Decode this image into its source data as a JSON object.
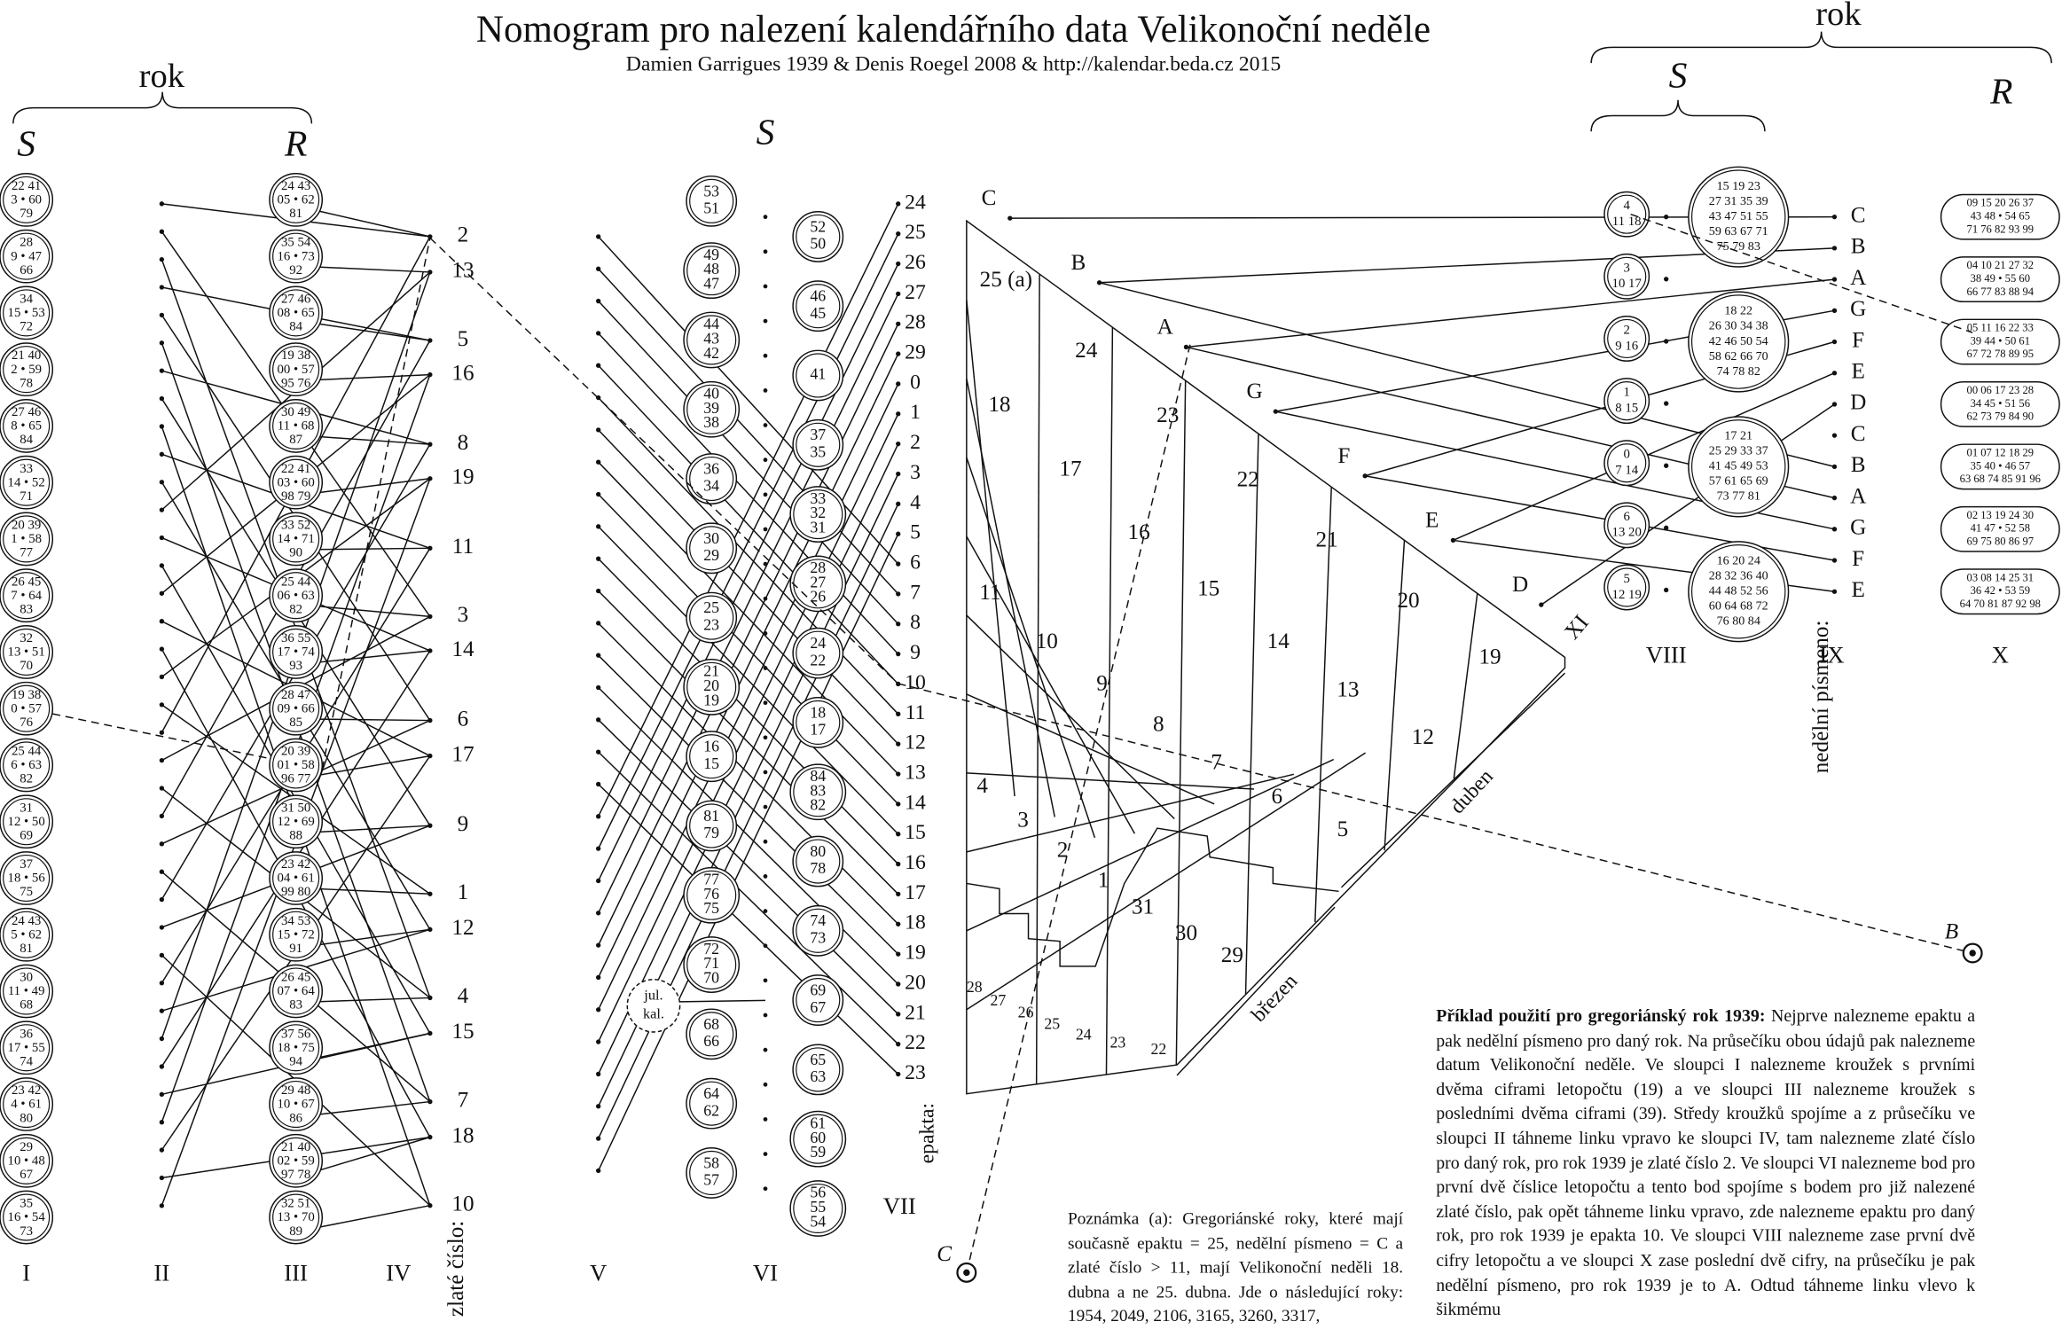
{
  "title": "Nomogram pro nalezení kalendářního data Velikonoční neděle",
  "subtitle": "Damien Garrigues 1939 & Denis Roegel 2008 & http://kalendar.beda.cz 2015",
  "labels": {
    "rok_left": "rok",
    "s_left": "S",
    "r_left": "R",
    "s_middle": "S",
    "rok_right": "rok",
    "s_right": "S",
    "r_right": "R",
    "golden": "zlaté číslo:",
    "epact": "epakta:",
    "sunday_letter": "nedělní písmeno:",
    "april": "duben",
    "march": "březen",
    "xi": "XI",
    "point_b": "B",
    "point_c": "C",
    "julian": [
      "jul.",
      "kal."
    ]
  },
  "columns": [
    "I",
    "II",
    "III",
    "IV",
    "V",
    "VI",
    "VII",
    "VIII",
    "IX",
    "X"
  ],
  "col_i": [
    [
      "22 41",
      "3 • 60",
      "79"
    ],
    [
      "28",
      "9 • 47",
      "66"
    ],
    [
      "34",
      "15 • 53",
      "72"
    ],
    [
      "21 40",
      "2 • 59",
      "78"
    ],
    [
      "27 46",
      "8 • 65",
      "84"
    ],
    [
      "33",
      "14 • 52",
      "71"
    ],
    [
      "20 39",
      "1 • 58",
      "77"
    ],
    [
      "26 45",
      "7 • 64",
      "83"
    ],
    [
      "32",
      "13 • 51",
      "70"
    ],
    [
      "19 38",
      "0 • 57",
      "76"
    ],
    [
      "25 44",
      "6 • 63",
      "82"
    ],
    [
      "31",
      "12 • 50",
      "69"
    ],
    [
      "37",
      "18 • 56",
      "75"
    ],
    [
      "24 43",
      "5 • 62",
      "81"
    ],
    [
      "30",
      "11 • 49",
      "68"
    ],
    [
      "36",
      "17 • 55",
      "74"
    ],
    [
      "23 42",
      "4 • 61",
      "80"
    ],
    [
      "29",
      "10 • 48",
      "67"
    ],
    [
      "35",
      "16 • 54",
      "73"
    ]
  ],
  "col_iii": [
    [
      "24 43",
      "05 • 62",
      "81"
    ],
    [
      "35 54",
      "16 • 73",
      "92"
    ],
    [
      "27 46",
      "08 • 65",
      "84"
    ],
    [
      "19 38",
      "00 • 57",
      "95 76"
    ],
    [
      "30 49",
      "11 • 68",
      "87"
    ],
    [
      "22 41",
      "03 • 60",
      "98 79"
    ],
    [
      "33 52",
      "14 • 71",
      "90"
    ],
    [
      "25 44",
      "06 • 63",
      "82"
    ],
    [
      "36 55",
      "17 • 74",
      "93"
    ],
    [
      "28 47",
      "09 • 66",
      "85"
    ],
    [
      "20 39",
      "01 • 58",
      "96 77"
    ],
    [
      "31 50",
      "12 • 69",
      "88"
    ],
    [
      "23 42",
      "04 • 61",
      "99 80"
    ],
    [
      "34 53",
      "15 • 72",
      "91"
    ],
    [
      "26 45",
      "07 • 64",
      "83"
    ],
    [
      "37 56",
      "18 • 75",
      "94"
    ],
    [
      "29 48",
      "10 • 67",
      "86"
    ],
    [
      "21 40",
      "02 • 59",
      "97 78"
    ],
    [
      "32 51",
      "13 • 70",
      "89"
    ]
  ],
  "col_iv": [
    2,
    13,
    5,
    16,
    8,
    19,
    11,
    3,
    14,
    6,
    17,
    9,
    1,
    12,
    4,
    15,
    7,
    18,
    10
  ],
  "col_vi_left": [
    [
      53,
      51
    ],
    [
      49,
      48,
      47
    ],
    [
      44,
      43,
      42
    ],
    [
      40,
      39,
      38
    ],
    [
      36,
      34
    ],
    [
      30,
      29
    ],
    [
      25,
      23
    ],
    [
      21,
      20,
      19
    ],
    [
      16,
      15
    ],
    [
      81,
      79
    ],
    [
      77,
      76,
      75
    ],
    [
      72,
      71,
      70
    ],
    [
      68,
      66
    ],
    [
      64,
      62
    ],
    [
      58,
      57
    ]
  ],
  "col_vi_right": [
    [
      52,
      50
    ],
    [
      46,
      45
    ],
    [
      41
    ],
    [
      37,
      35
    ],
    [
      33,
      32,
      31
    ],
    [
      28,
      27,
      26
    ],
    [
      24,
      22
    ],
    [
      18,
      17
    ],
    [
      84,
      83,
      82
    ],
    [
      80,
      78
    ],
    [
      74,
      73
    ],
    [
      69,
      67
    ],
    [
      65,
      63
    ],
    [
      61,
      60,
      59
    ],
    [
      56,
      55,
      54
    ]
  ],
  "epact": [
    24,
    25,
    26,
    27,
    28,
    29,
    0,
    1,
    2,
    3,
    4,
    5,
    6,
    7,
    8,
    9,
    10,
    11,
    12,
    13,
    14,
    15,
    16,
    17,
    18,
    19,
    20,
    21,
    22,
    23
  ],
  "letters_left": [
    "C",
    "B",
    "A",
    "G",
    "F",
    "E",
    "D"
  ],
  "grid": [
    "25 (a)",
    18,
    24,
    17,
    23,
    11,
    16,
    22,
    10,
    21,
    9,
    15,
    8,
    20,
    14,
    7,
    13,
    4,
    19,
    3,
    6,
    12,
    2,
    5,
    1,
    31,
    30,
    29,
    28,
    27,
    26,
    25,
    24,
    23,
    22
  ],
  "col_viii_small": [
    [
      "4",
      "11 18"
    ],
    [
      "3",
      "10 17"
    ],
    [
      "2",
      "9 16"
    ],
    [
      "1",
      "8 15"
    ],
    [
      "0",
      "7 14"
    ],
    [
      "6",
      "13 20"
    ],
    [
      "5",
      "12 19"
    ]
  ],
  "col_viii_big": [
    [
      "15 19 23",
      "27 31 35 39",
      "43 47 51 55",
      "59 63 67 71",
      "75 79 83"
    ],
    [
      "18 22",
      "26 30 34 38",
      "42 46 50 54",
      "58 62 66 70",
      "74 78 82"
    ],
    [
      "17 21",
      "25 29 33 37",
      "41 45 49 53",
      "57 61 65 69",
      "73 77 81"
    ],
    [
      "16 20 24",
      "28 32 36 40",
      "44 48 52 56",
      "60 64 68 72",
      "76 80 84"
    ]
  ],
  "col_ix": [
    "C",
    "B",
    "A",
    "G",
    "F",
    "E",
    "D",
    "C",
    "B",
    "A",
    "G",
    "F",
    "E"
  ],
  "col_x": [
    [
      "09 15 20 26 37",
      "43 48 • 54 65",
      "71 76 82 93 99"
    ],
    [
      "04 10 21 27 32",
      "38 49 • 55 60",
      "66 77 83 88 94"
    ],
    [
      "05 11 16 22 33",
      "39 44 • 50 61",
      "67 72 78 89 95"
    ],
    [
      "00 06 17 23 28",
      "34 45 • 51 56",
      "62 73 79 84 90"
    ],
    [
      "01 07 12 18 29",
      "35 40 • 46 57",
      "63 68 74 85 91 96"
    ],
    [
      "02 13 19 24 30",
      "41 47 • 52 58",
      "69 75 80 86 97"
    ],
    [
      "03 08 14 25 31",
      "36 42 • 53 59",
      "64 70 81 87 92 98"
    ]
  ],
  "note": "Poznámka (a): Gregoriánské roky, které mají současně epaktu = 25, nedělní písmeno = C a zlaté číslo > 11, mají Velikonoční neděli 18. dubna a ne 25. dubna. Jde o následující roky: 1954, 2049, 2106, 3165, 3260, 3317,",
  "example": {
    "lead": "Příklad použití pro gregoriánský rok 1939:",
    "text": "Nejprve nalezneme epaktu a pak nedělní písmeno pro daný rok. Na průsečíku obou údajů pak nalezneme datum Velikonoční neděle. Ve sloupci I nalezneme kroužek s prvními dvěma ciframi letopočtu (19) a ve sloupci III nalezneme kroužek s posledními dvěma ciframi (39). Středy kroužků spojíme a z průsečíku ve sloupci II táhneme linku vpravo ke sloupci IV, tam nalezneme zlaté číslo pro daný rok, pro rok 1939 je zlaté číslo 2. Ve sloupci VI nalezneme bod pro první dvě číslice letopočtu a tento bod spojíme s bodem pro již nalezené zlaté číslo, pak opět táhneme linku vpravo, zde nalezneme epaktu pro daný rok, pro rok 1939 je epakta 10. Ve sloupci VIII nalezneme zase první dvě cifry letopočtu a ve sloupci X zase poslední dvě cifry, na průsečíku je pak nedělní písmeno, pro rok 1939 je to A. Odtud táhneme linku vlevo k šikmému"
  }
}
